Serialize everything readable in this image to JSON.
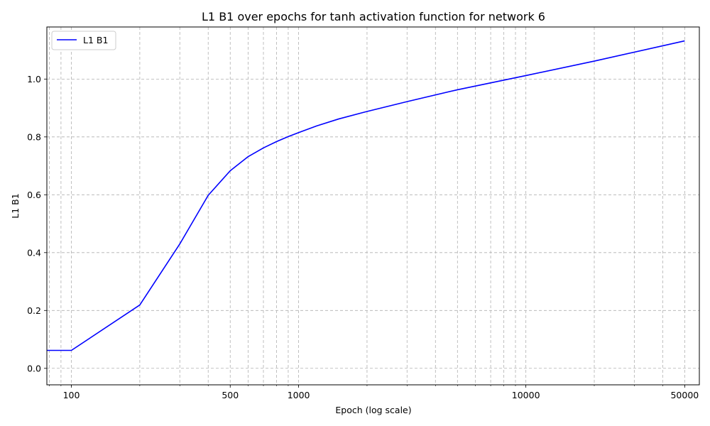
{
  "chart_data": {
    "type": "line",
    "title": "L1 B1 over epochs for tanh activation function for network 6",
    "xlabel": "Epoch (log scale)",
    "ylabel": "L1 B1",
    "xscale": "log",
    "xlim": [
      78,
      58000
    ],
    "ylim": [
      -0.057,
      1.18
    ],
    "grid": true,
    "legend_position": "top-left",
    "x_ticks": [
      100,
      500,
      1000,
      10000,
      50000
    ],
    "x_tick_labels": [
      "100",
      "500",
      "1000",
      "10000",
      "50000"
    ],
    "y_ticks": [
      0.0,
      0.2,
      0.4,
      0.6,
      0.8,
      1.0
    ],
    "y_tick_labels": [
      "0.0",
      "0.2",
      "0.4",
      "0.6",
      "0.8",
      "1.0"
    ],
    "series": [
      {
        "name": "L1 B1",
        "color": "#0000ff",
        "x": [
          78,
          100,
          200,
          300,
          400,
          500,
          600,
          700,
          800,
          900,
          1000,
          1200,
          1500,
          2000,
          3000,
          5000,
          10000,
          20000,
          50000
        ],
        "y": [
          0.062,
          0.062,
          0.219,
          0.43,
          0.598,
          0.683,
          0.732,
          0.762,
          0.784,
          0.801,
          0.815,
          0.838,
          0.862,
          0.888,
          0.922,
          0.963,
          1.012,
          1.062,
          1.132
        ]
      }
    ]
  }
}
